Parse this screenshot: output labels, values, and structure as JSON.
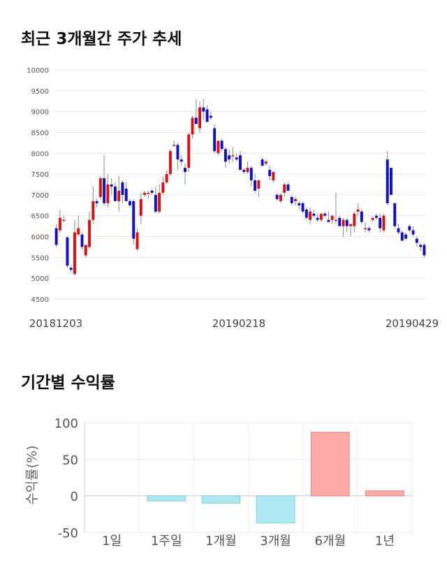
{
  "sections": {
    "price_title": "최근 3개월간 주가 추세",
    "returns_title": "기간별 수익률"
  },
  "chart_data": [
    {
      "type": "candlestick",
      "title": "최근 3개월간 주가 추세",
      "ylim": [
        4500,
        10000
      ],
      "y_ticks": [
        10000,
        9500,
        9000,
        8500,
        8000,
        7500,
        7000,
        6500,
        6000,
        5500,
        5000,
        4500
      ],
      "x_tick_labels": [
        "20181203",
        "20190218",
        "20190429"
      ],
      "grid": true,
      "colors": {
        "up": "#dd1111",
        "down": "#1111cc",
        "wick": "#888888"
      },
      "candles": [
        [
          6200,
          6300,
          5750,
          5800
        ],
        [
          6150,
          6650,
          6100,
          6450
        ],
        [
          6400,
          6500,
          6350,
          6400
        ],
        [
          5980,
          6000,
          5250,
          5300
        ],
        [
          5250,
          5300,
          5150,
          5200
        ],
        [
          5100,
          6400,
          5050,
          6100
        ],
        [
          6050,
          6500,
          6000,
          6200
        ],
        [
          6050,
          6100,
          5700,
          5750
        ],
        [
          5550,
          5800,
          5500,
          5800
        ],
        [
          5750,
          6600,
          5700,
          6400
        ],
        [
          6400,
          7200,
          6300,
          6850
        ],
        [
          6850,
          6900,
          6700,
          6800
        ],
        [
          6950,
          7450,
          6900,
          7400
        ],
        [
          7400,
          7950,
          6750,
          6800
        ],
        [
          6800,
          7500,
          6700,
          7250
        ],
        [
          7250,
          7400,
          7000,
          7200
        ],
        [
          7200,
          7300,
          6900,
          6850
        ],
        [
          6850,
          7450,
          6600,
          7100
        ],
        [
          7300,
          7350,
          6800,
          7000
        ],
        [
          7150,
          7300,
          6850,
          6850
        ],
        [
          6850,
          6900,
          6700,
          6750
        ],
        [
          6850,
          6900,
          5800,
          5950
        ],
        [
          5700,
          6200,
          5650,
          6100
        ],
        [
          6500,
          7050,
          6300,
          6900
        ],
        [
          7000,
          7100,
          6950,
          7050
        ],
        [
          7050,
          7100,
          6900,
          7050
        ],
        [
          7100,
          7150,
          7000,
          7050
        ],
        [
          7000,
          7200,
          6550,
          6600
        ],
        [
          6600,
          7250,
          6550,
          7050
        ],
        [
          7050,
          7450,
          7000,
          7300
        ],
        [
          7300,
          7600,
          7250,
          7500
        ],
        [
          7500,
          8100,
          7450,
          8050
        ],
        [
          8200,
          8300,
          8150,
          8200
        ],
        [
          8200,
          8250,
          7600,
          7850
        ],
        [
          7850,
          7950,
          7700,
          7800
        ],
        [
          7650,
          7750,
          7250,
          7550
        ],
        [
          7650,
          8500,
          7550,
          8450
        ],
        [
          8450,
          8900,
          8350,
          8850
        ],
        [
          8850,
          9300,
          8700,
          8700
        ],
        [
          8600,
          9250,
          8500,
          9100
        ],
        [
          9100,
          9300,
          8800,
          9000
        ],
        [
          9050,
          9150,
          8800,
          8750
        ],
        [
          8900,
          9000,
          8800,
          8850
        ],
        [
          8600,
          8700,
          8000,
          8050
        ],
        [
          8000,
          8300,
          7950,
          8300
        ],
        [
          8300,
          8350,
          8050,
          8100
        ],
        [
          8100,
          8150,
          7650,
          7800
        ],
        [
          7950,
          8100,
          7750,
          7850
        ],
        [
          7950,
          8150,
          7800,
          7950
        ],
        [
          7900,
          8000,
          7800,
          7850
        ],
        [
          7950,
          8050,
          7600,
          7600
        ],
        [
          7600,
          7650,
          7500,
          7550
        ],
        [
          7550,
          7800,
          7500,
          7650
        ],
        [
          7650,
          7700,
          7200,
          7350
        ],
        [
          7350,
          7500,
          7050,
          7100
        ],
        [
          7150,
          7300,
          6950,
          7350
        ],
        [
          7850,
          7900,
          7700,
          7700
        ],
        [
          7750,
          7850,
          7700,
          7800
        ],
        [
          7600,
          7700,
          7350,
          7450
        ],
        [
          7350,
          7550,
          7300,
          7550
        ],
        [
          7000,
          7050,
          6850,
          6900
        ],
        [
          6850,
          7050,
          6800,
          7000
        ],
        [
          7050,
          7300,
          6950,
          7250
        ],
        [
          7250,
          7300,
          7100,
          7100
        ],
        [
          6950,
          7000,
          6750,
          6800
        ],
        [
          6850,
          6950,
          6750,
          6900
        ],
        [
          6800,
          6850,
          6650,
          6750
        ],
        [
          6800,
          6850,
          6550,
          6600
        ],
        [
          6650,
          6700,
          6400,
          6450
        ],
        [
          6400,
          6700,
          6300,
          6600
        ],
        [
          6550,
          6650,
          6450,
          6500
        ],
        [
          6450,
          6550,
          6350,
          6400
        ],
        [
          6400,
          6550,
          6350,
          6550
        ],
        [
          6550,
          6600,
          6450,
          6500
        ],
        [
          6400,
          6600,
          6350,
          6350
        ],
        [
          6400,
          6500,
          6300,
          6500
        ],
        [
          6400,
          7050,
          6300,
          6400
        ],
        [
          6450,
          6500,
          6250,
          6250
        ],
        [
          6250,
          6450,
          6000,
          6400
        ],
        [
          6400,
          6450,
          6100,
          6250
        ],
        [
          6250,
          6300,
          6000,
          6300
        ],
        [
          6250,
          6600,
          6100,
          6550
        ],
        [
          6600,
          6800,
          6500,
          6650
        ],
        [
          6600,
          6650,
          6300,
          6350
        ],
        [
          6200,
          6350,
          6100,
          6200
        ],
        [
          6200,
          6250,
          6100,
          6150
        ],
        [
          6400,
          6450,
          6350,
          6450
        ],
        [
          6500,
          6550,
          6400,
          6450
        ],
        [
          6450,
          6550,
          6100,
          6200
        ],
        [
          6150,
          6550,
          6100,
          6500
        ],
        [
          7850,
          8050,
          6750,
          6800
        ],
        [
          7650,
          7650,
          7000,
          7000
        ],
        [
          6800,
          6800,
          6200,
          6250
        ],
        [
          6200,
          6300,
          6050,
          6100
        ],
        [
          6100,
          6150,
          5900,
          5900
        ],
        [
          6050,
          6100,
          5900,
          5950
        ],
        [
          6250,
          6300,
          6100,
          6150
        ],
        [
          6150,
          6250,
          6000,
          6050
        ],
        [
          5950,
          6000,
          5750,
          5850
        ],
        [
          5800,
          5850,
          5650,
          5750
        ],
        [
          5800,
          5850,
          5500,
          5550
        ]
      ]
    },
    {
      "type": "bar",
      "title": "기간별 수익률",
      "ylabel": "수익률(%)",
      "categories": [
        "1일",
        "1주일",
        "1개월",
        "3개월",
        "6개월",
        "1년"
      ],
      "values": [
        0,
        -7,
        -10,
        -37,
        87,
        7
      ],
      "ylim": [
        -50,
        100
      ],
      "y_ticks": [
        100,
        50,
        0,
        -50
      ],
      "grid": true,
      "colors": {
        "positive": "#ffaaaa",
        "negative": "#aee8f2",
        "positive_edge": "#e88888",
        "negative_edge": "#7fcfe0"
      }
    }
  ]
}
